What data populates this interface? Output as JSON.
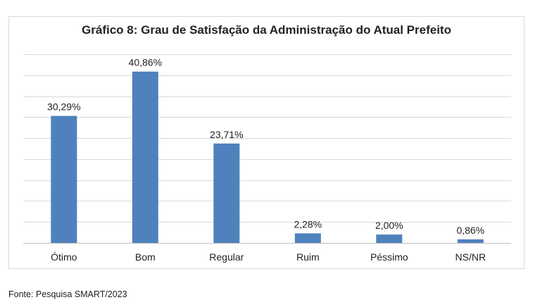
{
  "source": "Fonte: Pesquisa SMART/2023",
  "chart_data": {
    "type": "bar",
    "title": "Gráfico 8: Grau de Satisfação da Administração do Atual Prefeito",
    "categories": [
      "Ótimo",
      "Bom",
      "Regular",
      "Ruim",
      "Péssimo",
      "NS/NR"
    ],
    "values": [
      30.29,
      40.86,
      23.71,
      2.28,
      2.0,
      0.86
    ],
    "data_labels": [
      "30,29%",
      "40,86%",
      "23,71%",
      "2,28%",
      "2,00%",
      "0,86%"
    ],
    "xlabel": "",
    "ylabel": "",
    "ylim": [
      0,
      45
    ],
    "grid": true,
    "legend": "none",
    "bar_color": "#4f81bd"
  }
}
